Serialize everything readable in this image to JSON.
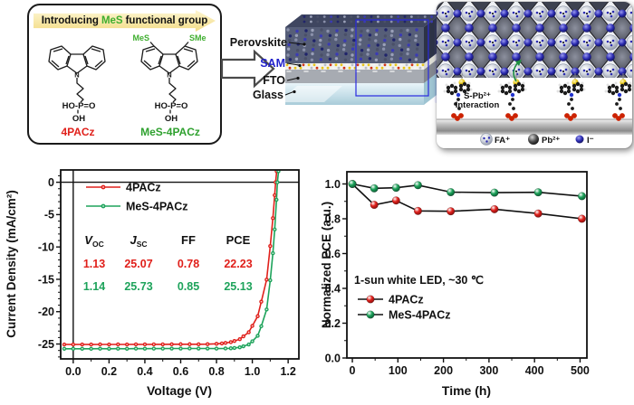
{
  "colors": {
    "red": "#e0201b",
    "green": "#1ea35b",
    "chem_green": "#3fae2f",
    "sam_label_blue": "#2323cc",
    "banner_yellow": "#f3dc86",
    "iodide_blue": "#2a2ab0",
    "axis_black": "#111111"
  },
  "molecule_panel": {
    "banner": {
      "prefix": "Introducing",
      "highlight": "MeS",
      "suffix": "functional group"
    },
    "left": {
      "name": "4PACz",
      "n_label": "N",
      "anchor_line1": "HO-P=O",
      "anchor_line2": "OH"
    },
    "right": {
      "name": "MeS-4PACz",
      "n_label": "N",
      "sub_left": "MeS",
      "sub_right": "SMe",
      "anchor_line1": "HO-P=O",
      "anchor_line2": "OH"
    }
  },
  "device_panel": {
    "labels": {
      "perovskite": "Perovskite",
      "sam": "SAM",
      "fto": "FTO",
      "glass": "Glass"
    }
  },
  "interface_panel": {
    "interaction_line1": "S-Pb²⁺",
    "interaction_line2": "Interaction",
    "legend": [
      {
        "name": "fa-ion",
        "label": "FA⁺"
      },
      {
        "name": "pb-ion",
        "label": "Pb²⁺"
      },
      {
        "name": "i-ion",
        "label": "I⁻"
      }
    ]
  },
  "chart_data": [
    {
      "type": "line",
      "name": "jv-curves",
      "title": "",
      "xlabel": "Voltage (V)",
      "ylabel": "Current Density (mA/cm²)",
      "xlim": [
        -0.07,
        1.26
      ],
      "ylim": [
        -27.3,
        1.9
      ],
      "xticks": [
        0.0,
        0.2,
        0.4,
        0.6,
        0.8,
        1.0,
        1.2
      ],
      "xtick_labels": [
        "0.0",
        "0.2",
        "0.4",
        "0.6",
        "0.8",
        "1.0",
        "1.2"
      ],
      "yticks": [
        0,
        -5,
        -10,
        -15,
        -20,
        -25
      ],
      "ytick_labels": [
        "0",
        "-5",
        "-10",
        "-15",
        "-20",
        "-25"
      ],
      "x_minor_step": 0.1,
      "y_minor_step": 1,
      "grid": false,
      "zero_lines": true,
      "legend_position": "top-left",
      "series": [
        {
          "name": "4PACz",
          "color": "#e0201b",
          "dark": "#7d0e0e",
          "voc": 1.13,
          "jsc": 25.07,
          "ff": 0.78,
          "pce": 22.23,
          "points": [
            [
              -0.05,
              -25.07
            ],
            [
              0.0,
              -25.08
            ],
            [
              0.05,
              -25.07
            ],
            [
              0.1,
              -25.08
            ],
            [
              0.15,
              -25.06
            ],
            [
              0.2,
              -25.07
            ],
            [
              0.25,
              -25.06
            ],
            [
              0.3,
              -25.07
            ],
            [
              0.35,
              -25.05
            ],
            [
              0.4,
              -25.06
            ],
            [
              0.45,
              -25.05
            ],
            [
              0.5,
              -25.05
            ],
            [
              0.55,
              -25.04
            ],
            [
              0.6,
              -25.03
            ],
            [
              0.65,
              -25.03
            ],
            [
              0.7,
              -25.04
            ],
            [
              0.75,
              -25.02
            ],
            [
              0.8,
              -24.97
            ],
            [
              0.83,
              -24.91
            ],
            [
              0.85,
              -24.83
            ],
            [
              0.88,
              -24.71
            ],
            [
              0.9,
              -24.53
            ],
            [
              0.93,
              -24.25
            ],
            [
              0.95,
              -23.82
            ],
            [
              0.98,
              -23.18
            ],
            [
              1.0,
              -22.2
            ],
            [
              1.03,
              -20.7
            ],
            [
              1.05,
              -18.46
            ],
            [
              1.08,
              -15.05
            ],
            [
              1.1,
              -9.86
            ],
            [
              1.115,
              -5.55
            ],
            [
              1.125,
              -2.0
            ],
            [
              1.13,
              0.0
            ],
            [
              1.136,
              1.7
            ]
          ]
        },
        {
          "name": "MeS-4PACz",
          "color": "#1ea35b",
          "dark": "#07512d",
          "voc": 1.14,
          "jsc": 25.73,
          "ff": 0.85,
          "pce": 25.13,
          "points": [
            [
              -0.05,
              -25.73
            ],
            [
              0.0,
              -25.74
            ],
            [
              0.05,
              -25.73
            ],
            [
              0.1,
              -25.74
            ],
            [
              0.15,
              -25.72
            ],
            [
              0.2,
              -25.73
            ],
            [
              0.25,
              -25.72
            ],
            [
              0.3,
              -25.73
            ],
            [
              0.35,
              -25.71
            ],
            [
              0.4,
              -25.72
            ],
            [
              0.45,
              -25.71
            ],
            [
              0.5,
              -25.71
            ],
            [
              0.55,
              -25.7
            ],
            [
              0.6,
              -25.7
            ],
            [
              0.65,
              -25.69
            ],
            [
              0.7,
              -25.7
            ],
            [
              0.75,
              -25.7
            ],
            [
              0.8,
              -25.71
            ],
            [
              0.85,
              -25.69
            ],
            [
              0.88,
              -25.66
            ],
            [
              0.9,
              -25.61
            ],
            [
              0.93,
              -25.51
            ],
            [
              0.95,
              -25.35
            ],
            [
              0.98,
              -25.07
            ],
            [
              1.0,
              -24.58
            ],
            [
              1.03,
              -23.73
            ],
            [
              1.05,
              -22.25
            ],
            [
              1.08,
              -19.66
            ],
            [
              1.1,
              -15.15
            ],
            [
              1.115,
              -10.97
            ],
            [
              1.125,
              -7.29
            ],
            [
              1.135,
              -2.7
            ],
            [
              1.14,
              0.0
            ],
            [
              1.146,
              1.7
            ]
          ]
        }
      ],
      "table": {
        "headers": [
          {
            "t": "V",
            "s": "OC"
          },
          {
            "t": "J",
            "s": "SC"
          },
          {
            "t": "FF",
            "s": ""
          },
          {
            "t": "PCE",
            "s": ""
          }
        ],
        "rows": [
          {
            "color": "#e0201b",
            "cells": [
              "1.13",
              "25.07",
              "0.78",
              "22.23"
            ]
          },
          {
            "color": "#1ea35b",
            "cells": [
              "1.14",
              "25.73",
              "0.85",
              "25.13"
            ]
          }
        ]
      }
    },
    {
      "type": "line",
      "name": "stability",
      "title": "",
      "xlabel": "Time (h)",
      "ylabel": "Normalized PCE (a.u.)",
      "xlim": [
        -12,
        515
      ],
      "ylim": [
        0,
        1.07
      ],
      "xticks": [
        0,
        100,
        200,
        300,
        400,
        500
      ],
      "xtick_labels": [
        "0",
        "100",
        "200",
        "300",
        "400",
        "500"
      ],
      "yticks": [
        0,
        0.2,
        0.4,
        0.6,
        0.8,
        1.0
      ],
      "ytick_labels": [
        "0.0",
        "0.2",
        "0.4",
        "0.6",
        "0.8",
        "1.0"
      ],
      "x_minor_step": 50,
      "y_minor_step": 0.1,
      "grid": false,
      "zero_lines": false,
      "line_color": "#111111",
      "annotation": "1-sun white LED, ~30 ℃",
      "legend_position": "center-left",
      "series": [
        {
          "name": "4PACz",
          "color": "#e0201b",
          "dark": "#7d0e0e",
          "x": [
            0,
            48,
            96,
            144,
            216,
            312,
            408,
            504
          ],
          "y": [
            1.0,
            0.88,
            0.905,
            0.845,
            0.843,
            0.855,
            0.83,
            0.8
          ]
        },
        {
          "name": "MeS-4PACz",
          "color": "#1ea35b",
          "dark": "#07512d",
          "x": [
            0,
            48,
            96,
            144,
            216,
            312,
            408,
            504
          ],
          "y": [
            1.0,
            0.975,
            0.978,
            0.993,
            0.953,
            0.95,
            0.952,
            0.93
          ]
        }
      ]
    }
  ]
}
